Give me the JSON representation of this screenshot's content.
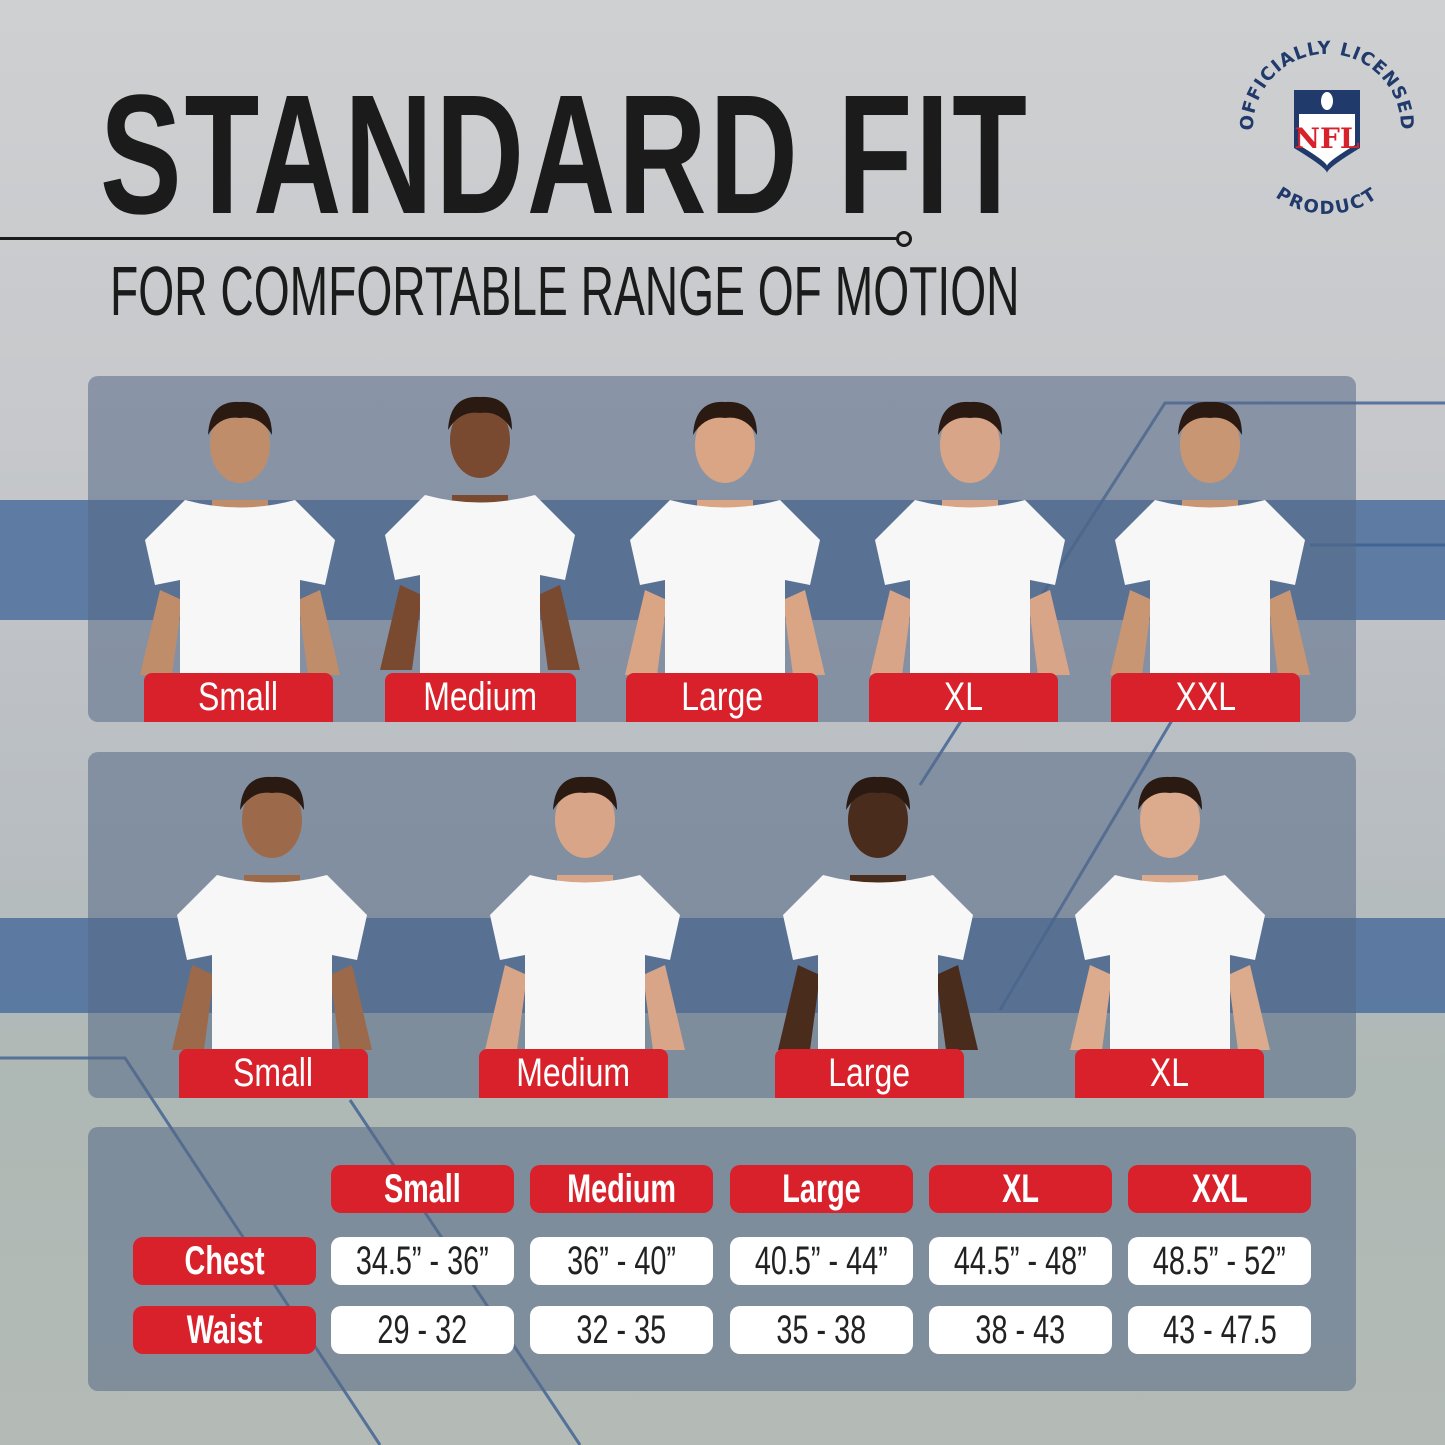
{
  "header": {
    "title": "STANDARD FIT",
    "subtitle": "FOR COMFORTABLE RANGE OF MOTION"
  },
  "badge": {
    "text": "OFFICIALLY LICENSED PRODUCT",
    "logo": "NFL",
    "colors": {
      "navy": "#1f3a6b",
      "red": "#d8212a"
    }
  },
  "colors": {
    "accent_red": "#d8212a",
    "band_blue": "#4c6e9c"
  },
  "men": {
    "sizes": [
      "Small",
      "Medium",
      "Large",
      "XL",
      "XXL"
    ]
  },
  "women": {
    "sizes": [
      "Small",
      "Medium",
      "Large",
      "XL"
    ]
  },
  "size_chart": {
    "columns": [
      "Small",
      "Medium",
      "Large",
      "XL",
      "XXL"
    ],
    "rows": [
      {
        "label": "Chest",
        "values": [
          "34.5” - 36”",
          "36” - 40”",
          "40.5” - 44”",
          "44.5” - 48”",
          "48.5” - 52”"
        ]
      },
      {
        "label": "Waist",
        "values": [
          "29 - 32",
          "32 - 35",
          "35 - 38",
          "38 - 43",
          "43 - 47.5"
        ]
      }
    ]
  }
}
